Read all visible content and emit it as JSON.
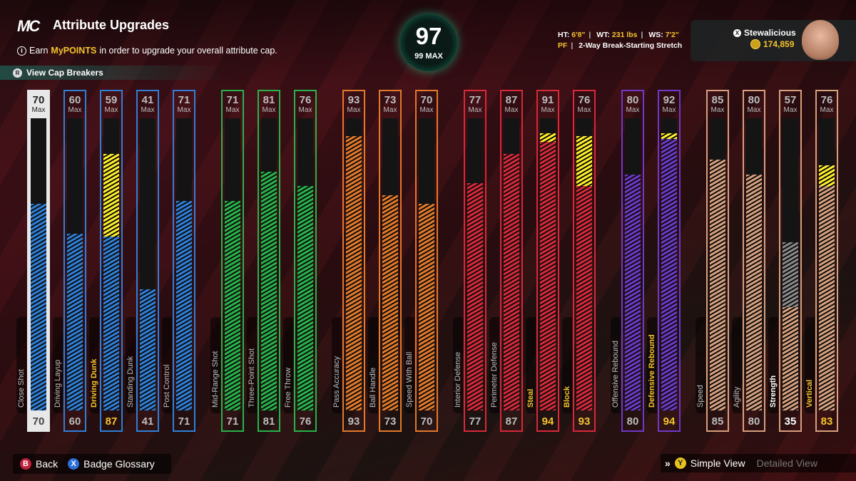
{
  "header": {
    "logo": "MC",
    "title": "Attribute Upgrades",
    "subtitle_prefix": "Earn",
    "subtitle_highlight": "MyPOINTS",
    "subtitle_suffix": "in order to upgrade your overall attribute cap.",
    "cap_breakers_label": "View Cap Breakers",
    "cap_breakers_button": "R"
  },
  "overall": {
    "value": "97",
    "max_label": "99 MAX"
  },
  "player": {
    "ht_label": "HT:",
    "ht": "6'8\"",
    "wt_label": "WT:",
    "wt": "231 lbs",
    "ws_label": "WS:",
    "ws": "7'2\"",
    "position": "PF",
    "archetype": "2-Way Break-Starting Stretch",
    "gamertag": "Stewalicious",
    "vc": "174,859"
  },
  "max_label": "Max",
  "colors": {
    "inside": "#2f7fd8",
    "shooting": "#28b34a",
    "playmaking": "#e3792a",
    "defense": "#d8283a",
    "rebounding": "#6f38c8",
    "athleticism": "#d7a07e",
    "upgrade": "#fff02a",
    "boost_text": "#f6c42e",
    "strength_extra": "#8a8a8a"
  },
  "attributes": [
    {
      "name": "Close Shot",
      "max": "70",
      "current": "70",
      "fill": 70,
      "boost_to": null,
      "group": "inside",
      "selected": true
    },
    {
      "name": "Driving Layup",
      "max": "60",
      "current": "60",
      "fill": 60,
      "boost_to": null,
      "group": "inside"
    },
    {
      "name": "Driving Dunk",
      "max": "59",
      "current": "87",
      "fill": 59,
      "boost_to": 87,
      "group": "inside"
    },
    {
      "name": "Standing Dunk",
      "max": "41",
      "current": "41",
      "fill": 41,
      "boost_to": null,
      "group": "inside"
    },
    {
      "name": "Post Control",
      "max": "71",
      "current": "71",
      "fill": 71,
      "boost_to": null,
      "group": "inside"
    },
    {
      "name": "Mid-Range Shot",
      "max": "71",
      "current": "71",
      "fill": 71,
      "boost_to": null,
      "group": "shooting"
    },
    {
      "name": "Three-Point Shot",
      "max": "81",
      "current": "81",
      "fill": 81,
      "boost_to": null,
      "group": "shooting"
    },
    {
      "name": "Free Throw",
      "max": "76",
      "current": "76",
      "fill": 76,
      "boost_to": null,
      "group": "shooting"
    },
    {
      "name": "Pass Accuracy",
      "max": "93",
      "current": "93",
      "fill": 93,
      "boost_to": null,
      "group": "playmaking"
    },
    {
      "name": "Ball Handle",
      "max": "73",
      "current": "73",
      "fill": 73,
      "boost_to": null,
      "group": "playmaking"
    },
    {
      "name": "Speed With Ball",
      "max": "70",
      "current": "70",
      "fill": 70,
      "boost_to": null,
      "group": "playmaking"
    },
    {
      "name": "Interior Defense",
      "max": "77",
      "current": "77",
      "fill": 77,
      "boost_to": null,
      "group": "defense"
    },
    {
      "name": "Perimeter Defense",
      "max": "87",
      "current": "87",
      "fill": 87,
      "boost_to": null,
      "group": "defense"
    },
    {
      "name": "Steal",
      "max": "91",
      "current": "94",
      "fill": 91,
      "boost_to": 94,
      "group": "defense"
    },
    {
      "name": "Block",
      "max": "76",
      "current": "93",
      "fill": 76,
      "boost_to": 93,
      "group": "defense"
    },
    {
      "name": "Offensive Rebound",
      "max": "80",
      "current": "80",
      "fill": 80,
      "boost_to": null,
      "group": "rebounding"
    },
    {
      "name": "Defensive Rebound",
      "max": "92",
      "current": "94",
      "fill": 92,
      "boost_to": 94,
      "group": "rebounding"
    },
    {
      "name": "Speed",
      "max": "85",
      "current": "85",
      "fill": 85,
      "boost_to": null,
      "group": "athleticism"
    },
    {
      "name": "Agility",
      "max": "80",
      "current": "80",
      "fill": 80,
      "boost_to": null,
      "group": "athleticism"
    },
    {
      "name": "Strength",
      "max": "57",
      "current": "35",
      "fill": 57,
      "boost_to": null,
      "reduced_to": 35,
      "group": "athleticism",
      "white_label": true
    },
    {
      "name": "Vertical",
      "max": "76",
      "current": "83",
      "fill": 76,
      "boost_to": 83,
      "group": "athleticism"
    }
  ],
  "footer": {
    "back_button": "B",
    "back_label": "Back",
    "glossary_button": "X",
    "glossary_label": "Badge Glossary",
    "view_button": "Y",
    "simple_view_label": "Simple View",
    "detailed_view_label": "Detailed View"
  }
}
